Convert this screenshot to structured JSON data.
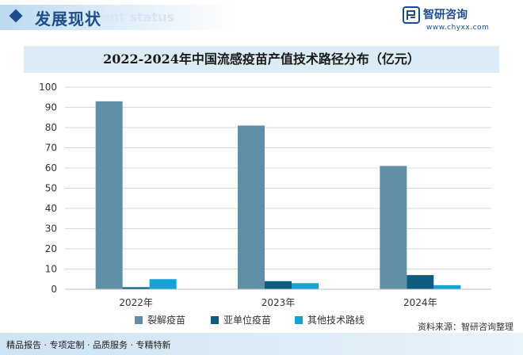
{
  "header": {
    "section_title": "发展现状",
    "section_watermark": "ent status",
    "brand_name": "智研咨询",
    "brand_url": "www.chyxx.com"
  },
  "chart_data": {
    "type": "bar",
    "title": "2022-2024年中国流感疫苗产值技术路径分布（亿元）",
    "categories": [
      "2022年",
      "2023年",
      "2024年"
    ],
    "series": [
      {
        "name": "裂解疫苗",
        "color": "#5f8fa6",
        "values": [
          93,
          81,
          61
        ]
      },
      {
        "name": "亚单位疫苗",
        "color": "#0e5b80",
        "values": [
          1,
          4,
          7
        ]
      },
      {
        "name": "其他技术路线",
        "color": "#17a2d6",
        "values": [
          5,
          3,
          2
        ]
      }
    ],
    "ylim": [
      0,
      100
    ],
    "yticks": [
      0,
      10,
      20,
      30,
      40,
      50,
      60,
      70,
      80,
      90,
      100
    ],
    "grid": true,
    "legend": "bottom"
  },
  "source": "资料来源：智研咨询整理",
  "footer": "精品报告 · 专项定制 · 品质服务 · 专精特新"
}
